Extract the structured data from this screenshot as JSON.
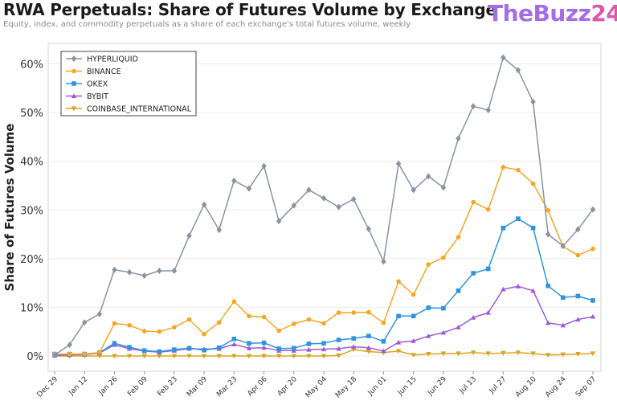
{
  "header": {
    "title": "RWA Perpetuals: Share of Futures Volume by Exchange",
    "subtitle": "Equity, index, and commodity perpetuals as a share of each exchange's total futures volume, weekly",
    "logo_part1": "TheBuzz",
    "logo_part2": "24",
    "logo_colors": [
      "#a66be6",
      "#d85aa8"
    ]
  },
  "chart_data": {
    "type": "line",
    "title": "RWA Perpetuals: Share of Futures Volume by Exchange",
    "xlabel": "",
    "ylabel": "Share of Futures Volume",
    "ylim": [
      0,
      62
    ],
    "yticks": [
      0,
      10,
      20,
      30,
      40,
      50,
      60
    ],
    "ytick_labels": [
      "0%",
      "10%",
      "20%",
      "30%",
      "40%",
      "50%",
      "60%"
    ],
    "xtick_labels": [
      "Dec 29",
      "Jan 12",
      "Jan 26",
      "Feb 09",
      "Feb 23",
      "Mar 09",
      "Mar 23",
      "Apr 06",
      "Apr 20",
      "May 04",
      "May 18",
      "Jun 01",
      "Jun 15",
      "Jun 29",
      "Jul 13",
      "Jul 27",
      "Aug 10",
      "Aug 24",
      "Sep 07"
    ],
    "x": [
      "Dec 29",
      "Jan 05",
      "Jan 12",
      "Jan 19",
      "Jan 26",
      "Feb 02",
      "Feb 09",
      "Feb 16",
      "Feb 23",
      "Mar 02",
      "Mar 09",
      "Mar 16",
      "Mar 23",
      "Mar 30",
      "Apr 06",
      "Apr 13",
      "Apr 20",
      "Apr 27",
      "May 04",
      "May 11",
      "May 18",
      "May 25",
      "Jun 01",
      "Jun 08",
      "Jun 15",
      "Jun 22",
      "Jun 29",
      "Jul 06",
      "Jul 13",
      "Jul 20",
      "Jul 27",
      "Aug 03",
      "Aug 10",
      "Aug 17",
      "Aug 24",
      "Aug 31",
      "Sep 07"
    ],
    "grid": true,
    "legend_position": "top-left",
    "series": [
      {
        "name": "HYPERLIQUID",
        "color": "#8a93a3",
        "marker": "diamond",
        "values": [
          0.2,
          2.3,
          6.9,
          8.6,
          17.7,
          17.2,
          16.5,
          17.5,
          17.5,
          24.7,
          31.1,
          25.9,
          36.0,
          34.4,
          39.0,
          27.7,
          30.9,
          34.1,
          32.4,
          30.6,
          32.2,
          26.1,
          19.4,
          39.5,
          34.1,
          36.9,
          34.6,
          44.7,
          51.3,
          50.5,
          61.3,
          58.7,
          52.2,
          25.0,
          22.6,
          26.0,
          30.1
        ]
      },
      {
        "name": "BINANCE",
        "color": "#f5a623",
        "marker": "circle",
        "values": [
          0.4,
          0.4,
          0.4,
          0.7,
          6.7,
          6.3,
          5.1,
          5.0,
          5.9,
          7.5,
          4.5,
          6.9,
          11.2,
          8.2,
          8.0,
          5.2,
          6.6,
          7.5,
          6.7,
          8.9,
          8.9,
          9.0,
          6.8,
          15.3,
          12.6,
          18.8,
          20.2,
          24.4,
          31.6,
          30.1,
          38.8,
          38.2,
          35.4,
          29.9,
          22.5,
          20.7,
          22.0
        ]
      },
      {
        "name": "OKEX",
        "color": "#2f93e0",
        "marker": "square",
        "values": [
          0.4,
          0.4,
          0.4,
          0.7,
          2.6,
          1.8,
          1.1,
          0.9,
          1.3,
          1.6,
          1.2,
          1.7,
          3.5,
          2.6,
          2.7,
          1.5,
          1.6,
          2.5,
          2.6,
          3.3,
          3.6,
          4.1,
          3.0,
          8.2,
          8.2,
          9.9,
          9.8,
          13.4,
          17.0,
          17.9,
          26.3,
          28.2,
          26.3,
          14.4,
          12.0,
          12.3,
          11.4
        ]
      },
      {
        "name": "BYBIT",
        "color": "#a05ad8",
        "marker": "triangle-up",
        "values": [
          0.1,
          0.2,
          0.3,
          0.6,
          2.3,
          1.5,
          1.0,
          0.8,
          1.1,
          1.5,
          1.4,
          1.5,
          2.4,
          1.6,
          1.7,
          1.1,
          1.1,
          1.3,
          1.4,
          1.5,
          1.9,
          1.7,
          1.0,
          2.8,
          3.1,
          4.1,
          4.8,
          5.9,
          7.9,
          8.9,
          13.7,
          14.3,
          13.4,
          6.8,
          6.3,
          7.5,
          8.1
        ]
      },
      {
        "name": "COINBASE_INTERNATIONAL",
        "color": "#d9a520",
        "marker": "triangle-down",
        "values": [
          0.0,
          0.0,
          0.0,
          0.0,
          0.0,
          0.0,
          0.0,
          0.0,
          0.0,
          0.0,
          0.0,
          0.0,
          0.0,
          0.0,
          0.0,
          0.0,
          0.0,
          0.0,
          0.0,
          0.1,
          1.3,
          0.9,
          0.7,
          1.0,
          0.2,
          0.4,
          0.5,
          0.5,
          0.7,
          0.5,
          0.6,
          0.7,
          0.5,
          0.2,
          0.3,
          0.4,
          0.5
        ]
      }
    ]
  }
}
